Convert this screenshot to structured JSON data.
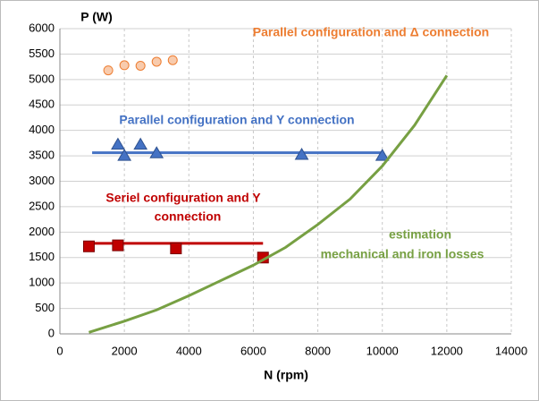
{
  "chart_data": {
    "type": "scatter",
    "y_label": "P (W)",
    "x_label": "N (rpm)",
    "xlim": [
      0,
      14000
    ],
    "xticks": [
      0,
      2000,
      4000,
      6000,
      8000,
      10000,
      12000,
      14000
    ],
    "ylim": [
      0,
      6000
    ],
    "yticks": [
      0,
      500,
      1000,
      1500,
      2000,
      2500,
      3000,
      3500,
      4000,
      4500,
      5000,
      5500,
      6000
    ],
    "grid": true,
    "series": [
      {
        "name": [
          "Parallel configuration and Δ connection"
        ],
        "color": "#ed7d31",
        "marker": "circle",
        "x": [
          1500,
          2000,
          2500,
          3000,
          3500
        ],
        "values": [
          5180,
          5280,
          5270,
          5350,
          5380
        ]
      },
      {
        "name": [
          "Parallel configuration and Y connection"
        ],
        "color": "#4472c4",
        "marker": "triangle",
        "x": [
          1800,
          2000,
          2500,
          3000,
          7500,
          10000
        ],
        "values": [
          3720,
          3500,
          3720,
          3550,
          3520,
          3500
        ],
        "level_x": [
          1000,
          10000
        ],
        "level": 3560
      },
      {
        "name": [
          "Seriel configuration and Y",
          "connection"
        ],
        "color": "#c00000",
        "marker": "square",
        "x": [
          900,
          1800,
          3600,
          6300
        ],
        "values": [
          1720,
          1740,
          1680,
          1500
        ],
        "level_x": [
          1000,
          6300
        ],
        "level": 1780
      },
      {
        "name": [
          "estimation",
          "mechanical and iron losses"
        ],
        "color": "#77a043",
        "marker": "line",
        "x": [
          900,
          2000,
          3000,
          4000,
          5000,
          6000,
          7000,
          8000,
          9000,
          10000,
          11000,
          12000
        ],
        "values": [
          30,
          250,
          470,
          750,
          1050,
          1350,
          1700,
          2150,
          2650,
          3300,
          4100,
          5080
        ]
      }
    ]
  }
}
